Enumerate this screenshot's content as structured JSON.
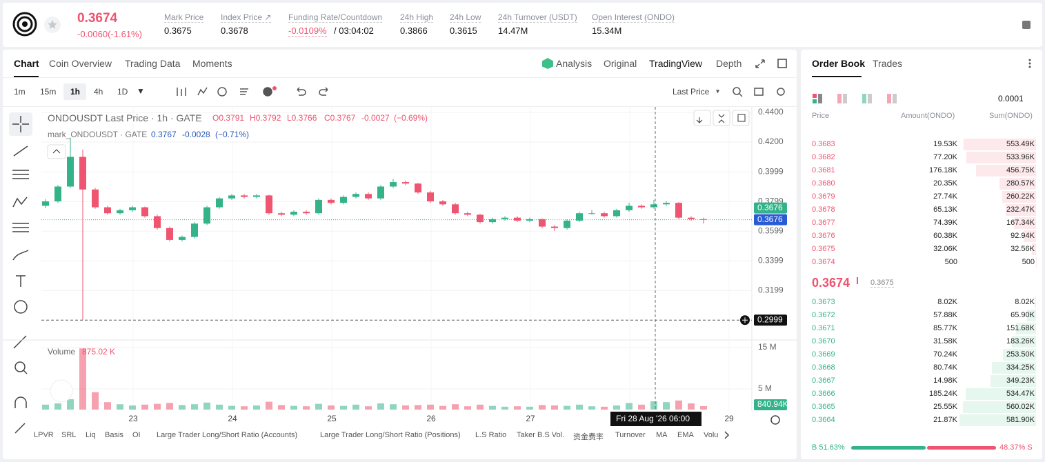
{
  "header": {
    "price": "0.3674",
    "change": "-0.0060(-1.61%)",
    "stats": [
      {
        "label": "Mark Price",
        "value": "0.3675"
      },
      {
        "label": "Index Price ↗",
        "value": "0.3678"
      },
      {
        "label": "Funding Rate/Countdown",
        "value": "-0.0109%",
        "extra": "/ 03:04:02"
      },
      {
        "label": "24h High",
        "value": "0.3866"
      },
      {
        "label": "24h Low",
        "value": "0.3615"
      },
      {
        "label": "24h Turnover (USDT)",
        "value": "14.47M"
      },
      {
        "label": "Open Interest (ONDO)",
        "value": "15.34M"
      }
    ]
  },
  "chart_tabs": [
    "Chart",
    "Coin Overview",
    "Trading Data",
    "Moments"
  ],
  "view_tabs": [
    "Analysis",
    "Original",
    "TradingView",
    "Depth"
  ],
  "intervals": [
    "1m",
    "15m",
    "1h",
    "4h",
    "1D"
  ],
  "price_source": "Last Price",
  "legend": {
    "symbol": "ONDOUSDT Last Price · 1h · GATE",
    "o": "O0.3791",
    "h": "H0.3792",
    "l": "L0.3766",
    "c": "C0.3767",
    "chg": "-0.0027",
    "pct": "(−0.69%)",
    "mark": "mark_ONDOUSDT · GATE",
    "mark_c": "0.3767",
    "mark_chg": "-0.0028",
    "mark_pct": "(−0.71%)"
  },
  "volume_legend": {
    "label": "Volume",
    "value": "875.02 K"
  },
  "badges": {
    "last": "0.3676",
    "mark": "0.3676",
    "line": "0.2999",
    "volume": "840.94K"
  },
  "crosshair_label": "Fri 28 Aug '26   06:00",
  "indicators": [
    "LPVR",
    "SRL",
    "Liq",
    "Basis",
    "OI",
    "Large Trader Long/Short Ratio (Accounts)",
    "Large Trader Long/Short Ratio (Positions)",
    "L.S Ratio",
    "Taker B.S Vol.",
    "资金费率",
    "Turnover",
    "MA",
    "EMA",
    "Volu"
  ],
  "chart_data": {
    "type": "candlestick",
    "up_color": "#34b38a",
    "down_color": "#ef5470",
    "x_labels": [
      "23",
      "24",
      "25",
      "26",
      "27",
      null,
      "29"
    ],
    "ylim": [
      0.287,
      0.44
    ],
    "yticks": [
      {
        "value": 0.44,
        "label": "0.4400"
      },
      {
        "value": 0.42,
        "label": "0.4200"
      },
      {
        "value": 0.3999,
        "label": "0.3999"
      },
      {
        "value": 0.3799,
        "label": "0.3799"
      },
      {
        "value": 0.3599,
        "label": "0.3599"
      },
      {
        "value": 0.3399,
        "label": "0.3399"
      },
      {
        "value": 0.3199,
        "label": "0.3199"
      }
    ],
    "candles": [
      [
        0.377,
        0.3815,
        0.3755,
        0.38
      ],
      [
        0.38,
        0.391,
        0.379,
        0.39
      ],
      [
        0.39,
        0.423,
        0.389,
        0.41
      ],
      [
        0.41,
        0.415,
        0.2999,
        0.388
      ],
      [
        0.388,
        0.389,
        0.375,
        0.376
      ],
      [
        0.376,
        0.377,
        0.371,
        0.372
      ],
      [
        0.372,
        0.375,
        0.371,
        0.374
      ],
      [
        0.374,
        0.377,
        0.373,
        0.376
      ],
      [
        0.376,
        0.3765,
        0.369,
        0.37
      ],
      [
        0.37,
        0.371,
        0.361,
        0.362
      ],
      [
        0.362,
        0.363,
        0.353,
        0.354
      ],
      [
        0.354,
        0.357,
        0.353,
        0.356
      ],
      [
        0.356,
        0.366,
        0.355,
        0.365
      ],
      [
        0.365,
        0.377,
        0.364,
        0.376
      ],
      [
        0.376,
        0.383,
        0.375,
        0.382
      ],
      [
        0.382,
        0.385,
        0.381,
        0.384
      ],
      [
        0.384,
        0.385,
        0.382,
        0.383
      ],
      [
        0.383,
        0.385,
        0.382,
        0.384
      ],
      [
        0.384,
        0.3845,
        0.371,
        0.372
      ],
      [
        0.372,
        0.373,
        0.37,
        0.371
      ],
      [
        0.371,
        0.374,
        0.37,
        0.373
      ],
      [
        0.373,
        0.374,
        0.371,
        0.372
      ],
      [
        0.372,
        0.382,
        0.371,
        0.381
      ],
      [
        0.381,
        0.382,
        0.378,
        0.379
      ],
      [
        0.379,
        0.384,
        0.378,
        0.383
      ],
      [
        0.383,
        0.386,
        0.382,
        0.385
      ],
      [
        0.385,
        0.386,
        0.381,
        0.382
      ],
      [
        0.382,
        0.391,
        0.381,
        0.39
      ],
      [
        0.39,
        0.395,
        0.389,
        0.393
      ],
      [
        0.393,
        0.394,
        0.391,
        0.392
      ],
      [
        0.392,
        0.3925,
        0.385,
        0.386
      ],
      [
        0.386,
        0.387,
        0.379,
        0.38
      ],
      [
        0.38,
        0.381,
        0.377,
        0.378
      ],
      [
        0.378,
        0.379,
        0.371,
        0.372
      ],
      [
        0.372,
        0.373,
        0.37,
        0.371
      ],
      [
        0.371,
        0.3715,
        0.365,
        0.366
      ],
      [
        0.366,
        0.369,
        0.365,
        0.368
      ],
      [
        0.368,
        0.37,
        0.367,
        0.369
      ],
      [
        0.369,
        0.37,
        0.366,
        0.367
      ],
      [
        0.367,
        0.369,
        0.366,
        0.368
      ],
      [
        0.368,
        0.3685,
        0.362,
        0.363
      ],
      [
        0.363,
        0.364,
        0.36,
        0.362
      ],
      [
        0.362,
        0.368,
        0.361,
        0.367
      ],
      [
        0.367,
        0.373,
        0.366,
        0.372
      ],
      [
        0.372,
        0.374,
        0.371,
        0.372
      ],
      [
        0.372,
        0.373,
        0.369,
        0.37
      ],
      [
        0.37,
        0.375,
        0.369,
        0.374
      ],
      [
        0.374,
        0.379,
        0.373,
        0.377
      ],
      [
        0.377,
        0.378,
        0.375,
        0.376
      ],
      [
        0.376,
        0.381,
        0.375,
        0.378
      ],
      [
        0.378,
        0.38,
        0.377,
        0.379
      ],
      [
        0.379,
        0.3795,
        0.368,
        0.369
      ],
      [
        0.369,
        0.37,
        0.367,
        0.368
      ],
      [
        0.368,
        0.369,
        0.365,
        0.3676
      ]
    ],
    "volume": [
      1.2,
      1.5,
      2.5,
      14.8,
      4.2,
      1.8,
      1.3,
      1.0,
      1.2,
      1.4,
      1.6,
      1.1,
      1.3,
      1.7,
      1.2,
      0.9,
      0.8,
      1.0,
      1.9,
      1.1,
      0.9,
      0.8,
      1.4,
      1.0,
      0.9,
      1.2,
      0.8,
      1.5,
      1.3,
      1.0,
      1.1,
      1.2,
      0.9,
      1.3,
      0.8,
      1.2,
      0.9,
      0.7,
      0.8,
      0.7,
      1.1,
      1.0,
      0.9,
      1.2,
      0.8,
      0.7,
      1.0,
      1.6,
      1.2,
      2.0,
      1.8,
      2.2,
      1.5,
      0.84094
    ],
    "vlim": [
      0,
      16.67
    ],
    "vticks": [
      {
        "value": 15,
        "label": "15 M"
      },
      {
        "value": 5,
        "label": "5 M"
      }
    ]
  },
  "order_book": {
    "tabs": [
      "Order Book",
      "Trades"
    ],
    "precision": "0.0001",
    "columns": [
      "Price",
      "Amount(ONDO)",
      "Sum(ONDO)"
    ],
    "asks": [
      {
        "price": "0.3683",
        "amount": "19.53K",
        "sum": "553.49K"
      },
      {
        "price": "0.3682",
        "amount": "77.20K",
        "sum": "533.96K"
      },
      {
        "price": "0.3681",
        "amount": "176.18K",
        "sum": "456.75K"
      },
      {
        "price": "0.3680",
        "amount": "20.35K",
        "sum": "280.57K"
      },
      {
        "price": "0.3679",
        "amount": "27.74K",
        "sum": "260.22K"
      },
      {
        "price": "0.3678",
        "amount": "65.13K",
        "sum": "232.47K"
      },
      {
        "price": "0.3677",
        "amount": "74.39K",
        "sum": "167.34K"
      },
      {
        "price": "0.3676",
        "amount": "60.38K",
        "sum": "92.94K"
      },
      {
        "price": "0.3675",
        "amount": "32.06K",
        "sum": "32.56K"
      },
      {
        "price": "0.3674",
        "amount": "500",
        "sum": "500"
      }
    ],
    "mid_price": "0.3674",
    "mark_price": "0.3675",
    "bids": [
      {
        "price": "0.3673",
        "amount": "8.02K",
        "sum": "8.02K"
      },
      {
        "price": "0.3672",
        "amount": "57.88K",
        "sum": "65.90K"
      },
      {
        "price": "0.3671",
        "amount": "85.77K",
        "sum": "151.68K"
      },
      {
        "price": "0.3670",
        "amount": "31.58K",
        "sum": "183.26K"
      },
      {
        "price": "0.3669",
        "amount": "70.24K",
        "sum": "253.50K"
      },
      {
        "price": "0.3668",
        "amount": "80.74K",
        "sum": "334.25K"
      },
      {
        "price": "0.3667",
        "amount": "14.98K",
        "sum": "349.23K"
      },
      {
        "price": "0.3666",
        "amount": "185.24K",
        "sum": "534.47K"
      },
      {
        "price": "0.3665",
        "amount": "25.55K",
        "sum": "560.02K"
      },
      {
        "price": "0.3664",
        "amount": "21.87K",
        "sum": "581.90K"
      }
    ],
    "buy_ratio": "B 51.63%",
    "sell_ratio": "48.37% S"
  }
}
